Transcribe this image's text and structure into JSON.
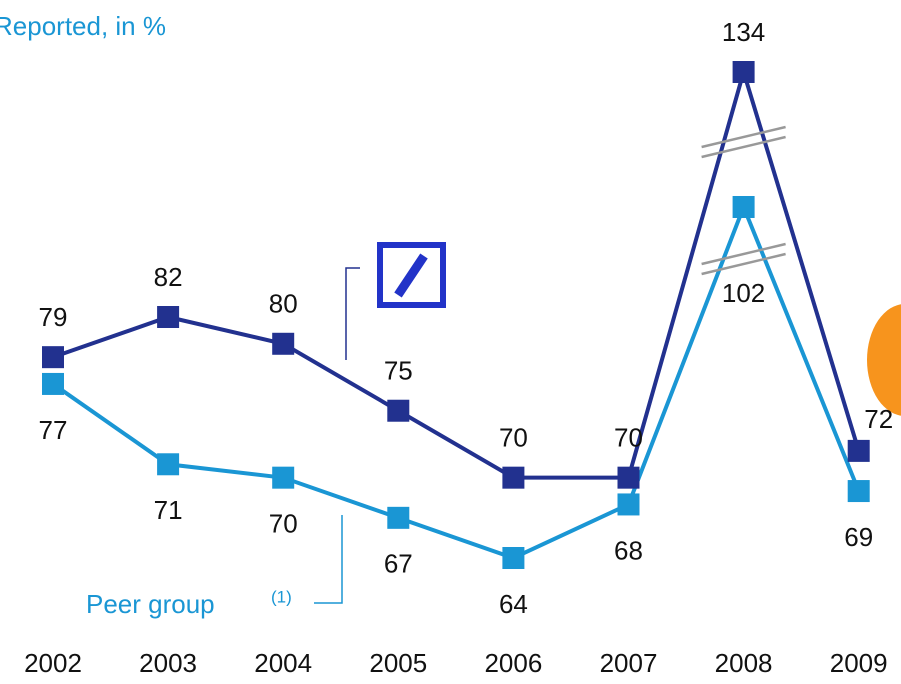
{
  "chart_data": {
    "type": "line",
    "title": "Reported, in %",
    "categories": [
      "2002",
      "2003",
      "2004",
      "2005",
      "2006",
      "2007",
      "2008",
      "2009"
    ],
    "series": [
      {
        "color": "#22318f",
        "values": [
          79,
          82,
          80,
          75,
          70,
          70,
          134,
          72
        ]
      },
      {
        "name": "Peer group",
        "color": "#1a96d4",
        "values": [
          77,
          71,
          70,
          67,
          64,
          68,
          102,
          69
        ]
      }
    ],
    "legend_note": "(1)"
  }
}
